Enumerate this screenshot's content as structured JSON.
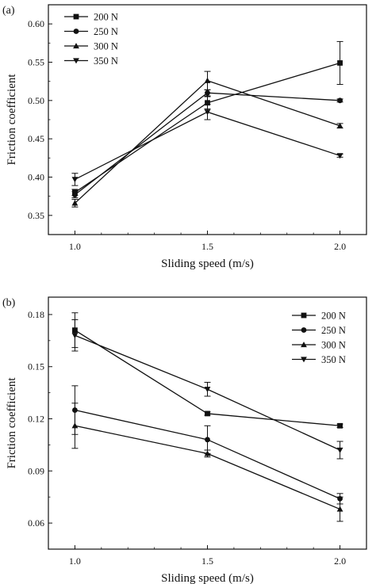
{
  "chart_data": [
    {
      "type": "line",
      "panel_label": "(a)",
      "xlabel": "Sliding speed (m/s)",
      "ylabel": "Friction coefficient",
      "x": [
        1.0,
        1.5,
        2.0
      ],
      "x_tick_labels": [
        "1.0",
        "1.5",
        "2.0"
      ],
      "xlim": [
        0.9,
        2.1
      ],
      "ylim": [
        0.325,
        0.625
      ],
      "y_ticks": [
        0.35,
        0.4,
        0.45,
        0.5,
        0.55,
        0.6
      ],
      "y_tick_labels": [
        "0.35",
        "0.40",
        "0.45",
        "0.50",
        "0.55",
        "0.60"
      ],
      "legend_position": "top-left",
      "grid": false,
      "series": [
        {
          "name": "200 N",
          "marker": "square",
          "values": [
            0.38,
            0.497,
            0.549
          ],
          "errors": [
            0.004,
            0.008,
            0.028
          ]
        },
        {
          "name": "250 N",
          "marker": "circle",
          "values": [
            0.377,
            0.51,
            0.5
          ],
          "errors": [
            0.004,
            0.004,
            0.002
          ]
        },
        {
          "name": "300 N",
          "marker": "triangle-up",
          "values": [
            0.366,
            0.526,
            0.467
          ],
          "errors": [
            0.005,
            0.012,
            0.003
          ]
        },
        {
          "name": "350 N",
          "marker": "triangle-down",
          "values": [
            0.397,
            0.485,
            0.428
          ],
          "errors": [
            0.008,
            0.01,
            0.002
          ]
        }
      ]
    },
    {
      "type": "line",
      "panel_label": "(b)",
      "xlabel": "Sliding speed (m/s)",
      "ylabel": "Friction coefficient",
      "x": [
        1.0,
        1.5,
        2.0
      ],
      "x_tick_labels": [
        "1.0",
        "1.5",
        "2.0"
      ],
      "xlim": [
        0.9,
        2.1
      ],
      "ylim": [
        0.045,
        0.19
      ],
      "y_ticks": [
        0.06,
        0.09,
        0.12,
        0.15,
        0.18
      ],
      "y_tick_labels": [
        "0.06",
        "0.09",
        "0.12",
        "0.15",
        "0.18"
      ],
      "legend_position": "top-right",
      "grid": false,
      "series": [
        {
          "name": "200 N",
          "marker": "square",
          "values": [
            0.171,
            0.123,
            0.116
          ],
          "errors": [
            0.01,
            0.001,
            0.001
          ]
        },
        {
          "name": "250 N",
          "marker": "circle",
          "values": [
            0.125,
            0.108,
            0.074
          ],
          "errors": [
            0.014,
            0.008,
            0.003
          ]
        },
        {
          "name": "300 N",
          "marker": "triangle-up",
          "values": [
            0.116,
            0.1,
            0.068
          ],
          "errors": [
            0.013,
            0.002,
            0.007
          ]
        },
        {
          "name": "350 N",
          "marker": "triangle-down",
          "values": [
            0.168,
            0.137,
            0.102
          ],
          "errors": [
            0.009,
            0.004,
            0.005
          ]
        }
      ]
    }
  ]
}
